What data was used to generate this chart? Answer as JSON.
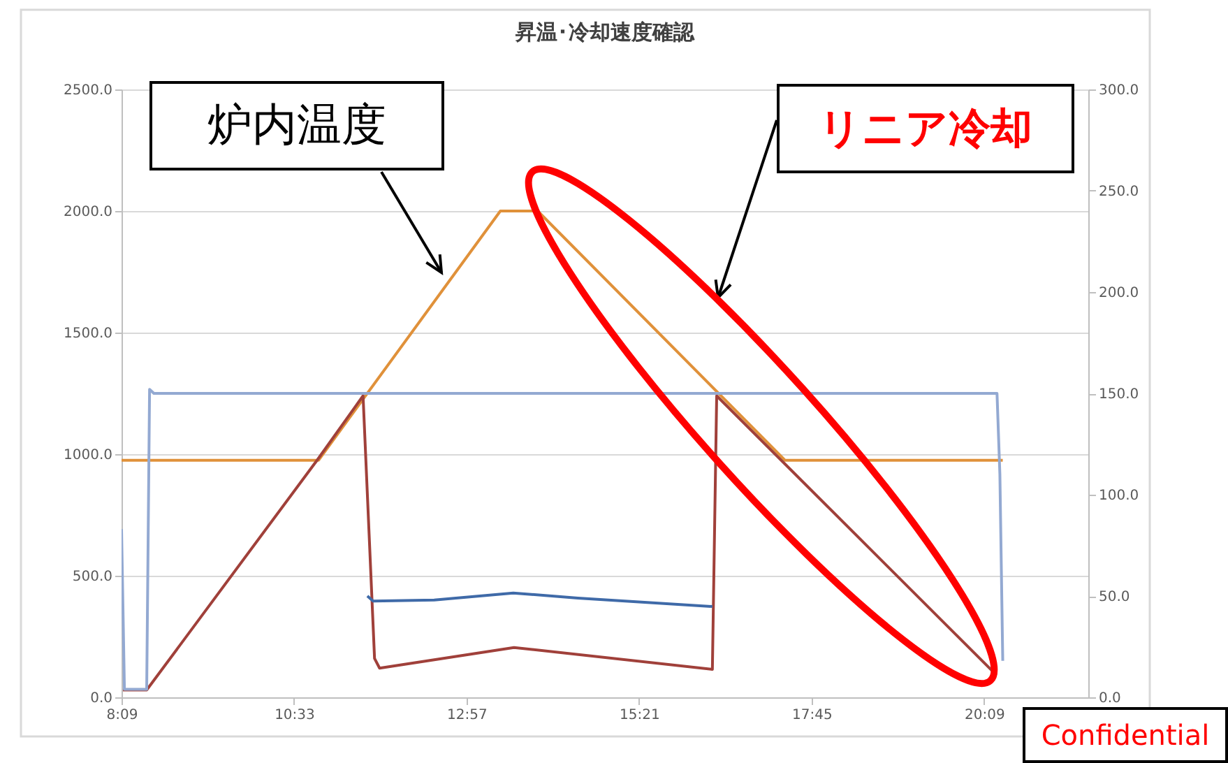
{
  "chart_data": {
    "type": "line",
    "title": "昇温･冷却速度確認",
    "xlim": [
      8.15,
      21.6
    ],
    "xticks": [
      {
        "value": 8.15,
        "label": "8:09"
      },
      {
        "value": 10.55,
        "label": "10:33"
      },
      {
        "value": 12.95,
        "label": "12:57"
      },
      {
        "value": 15.35,
        "label": "15:21"
      },
      {
        "value": 17.75,
        "label": "17:45"
      },
      {
        "value": 20.15,
        "label": "20:09"
      }
    ],
    "ylim": [
      0,
      2500
    ],
    "yticks": [
      {
        "value": 0,
        "label": "0.0"
      },
      {
        "value": 500,
        "label": "500.0"
      },
      {
        "value": 1000,
        "label": "1000.0"
      },
      {
        "value": 1500,
        "label": "1500.0"
      },
      {
        "value": 2000,
        "label": "2000.0"
      },
      {
        "value": 2500,
        "label": "2500.0"
      }
    ],
    "y2lim": [
      0,
      300
    ],
    "y2ticks": [
      {
        "value": 0,
        "label": "0.0"
      },
      {
        "value": 50,
        "label": "50.0"
      },
      {
        "value": 100,
        "label": "100.0"
      },
      {
        "value": 150,
        "label": "150.0"
      },
      {
        "value": 200,
        "label": "200.0"
      },
      {
        "value": 250,
        "label": "250.0"
      },
      {
        "value": 300,
        "label": "300.0"
      }
    ],
    "grid": "y",
    "series": [
      {
        "color": "#93a9d2",
        "axis": "y2",
        "x": [
          8.15,
          8.19,
          8.5,
          8.54,
          8.6,
          20.33,
          20.37,
          20.41
        ],
        "values": [
          83,
          4,
          4,
          152,
          150,
          150,
          110,
          18
        ]
      },
      {
        "color": "#3f6aa8",
        "axis": "y2",
        "x": [
          11.57,
          11.65,
          12.5,
          13.6,
          14.5,
          16.37
        ],
        "values": [
          50,
          47.5,
          48,
          51.5,
          49,
          44.8
        ]
      },
      {
        "color": "#e0913a",
        "x": [
          8.15,
          10.89,
          13.42,
          13.94,
          17.38,
          20.41
        ],
        "values": [
          975,
          975,
          2000,
          2000,
          975,
          975
        ]
      },
      {
        "color": "#a0403a",
        "x": [
          8.17,
          8.5,
          10.87,
          11.51,
          11.67,
          11.74,
          13.61,
          16.37,
          16.43,
          20.3
        ],
        "values": [
          30,
          30,
          975,
          1240,
          160,
          120,
          205,
          115,
          1240,
          98
        ]
      }
    ],
    "annotations": [
      "炉内温度",
      "リニア冷却",
      "Confidential"
    ]
  }
}
